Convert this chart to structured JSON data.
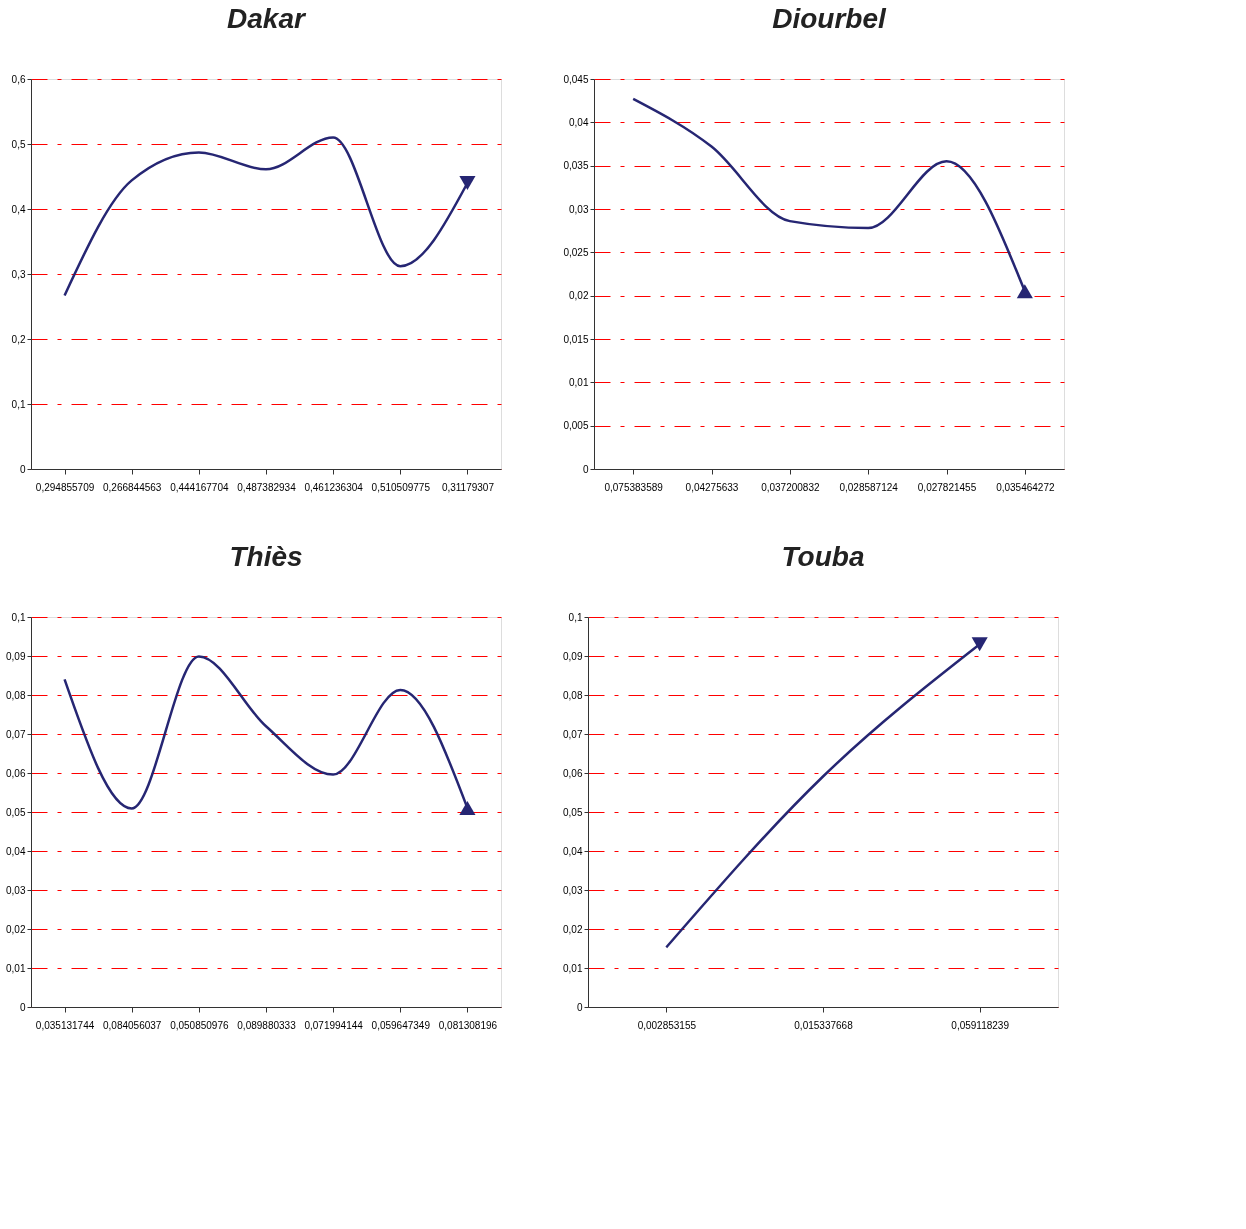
{
  "chart_data": [
    {
      "type": "line",
      "title": "Dakar",
      "categories": [
        "0,294855709",
        "0,266844563",
        "0,444167704",
        "0,487382934",
        "0,461236304",
        "0,510509775",
        "0,31179307"
      ],
      "series": [
        {
          "color": "#262673",
          "values": [
            0.267,
            0.444,
            0.487,
            0.461,
            0.51,
            0.312,
            0.44
          ]
        }
      ],
      "ylim": [
        0,
        0.6
      ],
      "yticks": [
        0,
        {
          "value": 0.1,
          "label": "0,1"
        },
        {
          "value": 0.2,
          "label": "0,2"
        },
        {
          "value": 0.3,
          "label": "0,3"
        },
        {
          "value": 0.4,
          "label": "0,4"
        },
        {
          "value": 0.5,
          "label": "0,5"
        },
        {
          "value": 0.6,
          "label": "0,6"
        }
      ],
      "grid": "y",
      "line_style": "solid"
    },
    {
      "type": "line",
      "title": "Diourbel",
      "categories": [
        "0,075383589",
        "0,04275633",
        "0,037200832",
        "0,028587124",
        "0,027821455",
        "0,035464272"
      ],
      "series": [
        {
          "color": "#262673",
          "values": [
            0.0427,
            0.0372,
            0.0286,
            0.0278,
            0.0355,
            0.0205
          ]
        }
      ],
      "ylim": [
        0,
        0.045
      ],
      "yticks": [
        0,
        {
          "value": 0.005,
          "label": "0,005"
        },
        {
          "value": 0.01,
          "label": "0,01"
        },
        {
          "value": 0.015,
          "label": "0,015"
        },
        {
          "value": 0.02,
          "label": "0,02"
        },
        {
          "value": 0.025,
          "label": "0,025"
        },
        {
          "value": 0.03,
          "label": "0,03"
        },
        {
          "value": 0.035,
          "label": "0,035"
        },
        {
          "value": 0.04,
          "label": "0,04"
        },
        {
          "value": 0.045,
          "label": "0,045"
        }
      ],
      "grid": "y",
      "line_style": "solid"
    },
    {
      "type": "line",
      "title": "Thiès",
      "categories": [
        "0,035131744",
        "0,084056037",
        "0,050850976",
        "0,089880333",
        "0,071994144",
        "0,059647349",
        "0,081308196"
      ],
      "series": [
        {
          "color": "#262673",
          "values": [
            0.084,
            0.0509,
            0.0899,
            0.072,
            0.0596,
            0.0813,
            0.051
          ]
        }
      ],
      "ylim": [
        0,
        0.1
      ],
      "yticks": [
        0,
        {
          "value": 0.01,
          "label": "0,01"
        },
        {
          "value": 0.02,
          "label": "0,02"
        },
        {
          "value": 0.03,
          "label": "0,03"
        },
        {
          "value": 0.04,
          "label": "0,04"
        },
        {
          "value": 0.05,
          "label": "0,05"
        },
        {
          "value": 0.06,
          "label": "0,06"
        },
        {
          "value": 0.07,
          "label": "0,07"
        },
        {
          "value": 0.08,
          "label": "0,08"
        },
        {
          "value": 0.09,
          "label": "0,09"
        },
        {
          "value": 0.1,
          "label": "0,1"
        }
      ],
      "grid": "y",
      "line_style": "solid"
    },
    {
      "type": "line",
      "title": "Touba",
      "categories": [
        "0,002853155",
        "0,015337668",
        "0,059118239"
      ],
      "series": [
        {
          "color": "#262673",
          "values": [
            0.0153,
            0.0591,
            0.093
          ]
        }
      ],
      "ylim": [
        0,
        0.1
      ],
      "yticks": [
        0,
        {
          "value": 0.01,
          "label": "0,01"
        },
        {
          "value": 0.02,
          "label": "0,02"
        },
        {
          "value": 0.03,
          "label": "0,03"
        },
        {
          "value": 0.04,
          "label": "0,04"
        },
        {
          "value": 0.05,
          "label": "0,05"
        },
        {
          "value": 0.06,
          "label": "0,06"
        },
        {
          "value": 0.07,
          "label": "0,07"
        },
        {
          "value": 0.08,
          "label": "0,08"
        },
        {
          "value": 0.09,
          "label": "0,09"
        },
        {
          "value": 0.1,
          "label": "0,1"
        }
      ],
      "grid": "y",
      "line_style": "solid"
    }
  ]
}
